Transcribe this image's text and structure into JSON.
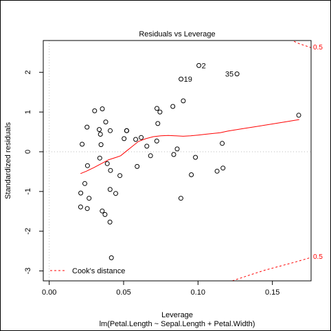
{
  "chart_data": {
    "type": "scatter",
    "title": "Residuals vs Leverage",
    "xlabel": "Leverage",
    "ylabel": "Standardized residuals",
    "subtitle": "lm(Petal.Length ~ Sepal.Length + Petal.Width)",
    "xlim": [
      -0.004,
      0.176
    ],
    "ylim": [
      -3.25,
      2.8
    ],
    "x_ticks": [
      "0.00",
      "0.05",
      "0.10",
      "0.15"
    ],
    "y_ticks": [
      "-3",
      "-2",
      "-1",
      "0",
      "1",
      "2"
    ],
    "x_tick_values": [
      0.0,
      0.05,
      0.1,
      0.15
    ],
    "y_tick_values": [
      -3,
      -2,
      -1,
      0,
      1,
      2
    ],
    "points": [
      {
        "x": 0.1006,
        "y": 2.17,
        "label": "2"
      },
      {
        "x": 0.0886,
        "y": 1.83,
        "label": "19"
      },
      {
        "x": 0.1262,
        "y": 1.96,
        "label": "35"
      },
      {
        "x": 0.1677,
        "y": 0.92
      },
      {
        "x": 0.0901,
        "y": 1.28
      },
      {
        "x": 0.0831,
        "y": 1.14
      },
      {
        "x": 0.0724,
        "y": 1.09
      },
      {
        "x": 0.0744,
        "y": 1.0
      },
      {
        "x": 0.073,
        "y": 0.71
      },
      {
        "x": 0.0305,
        "y": 1.03
      },
      {
        "x": 0.0357,
        "y": 1.08
      },
      {
        "x": 0.038,
        "y": 0.75
      },
      {
        "x": 0.0254,
        "y": 0.62
      },
      {
        "x": 0.0336,
        "y": 0.56
      },
      {
        "x": 0.041,
        "y": 0.53
      },
      {
        "x": 0.0344,
        "y": 0.44
      },
      {
        "x": 0.052,
        "y": 0.53
      },
      {
        "x": 0.0521,
        "y": 0.53
      },
      {
        "x": 0.0503,
        "y": 0.33
      },
      {
        "x": 0.0581,
        "y": 0.31
      },
      {
        "x": 0.0618,
        "y": 0.36
      },
      {
        "x": 0.0656,
        "y": 0.14
      },
      {
        "x": 0.0723,
        "y": 0.27
      },
      {
        "x": 0.086,
        "y": 0.07
      },
      {
        "x": 0.1163,
        "y": 0.21
      },
      {
        "x": 0.0221,
        "y": 0.19
      },
      {
        "x": 0.0348,
        "y": 0.18
      },
      {
        "x": 0.0837,
        "y": -0.07
      },
      {
        "x": 0.0681,
        "y": -0.1
      },
      {
        "x": 0.0983,
        "y": -0.14
      },
      {
        "x": 0.034,
        "y": -0.16
      },
      {
        "x": 0.0257,
        "y": -0.35
      },
      {
        "x": 0.039,
        "y": -0.3
      },
      {
        "x": 0.0591,
        "y": -0.37
      },
      {
        "x": 0.0412,
        "y": -0.47
      },
      {
        "x": 0.1168,
        "y": -0.41
      },
      {
        "x": 0.1128,
        "y": -0.49
      },
      {
        "x": 0.0475,
        "y": -0.6
      },
      {
        "x": 0.0955,
        "y": -0.58
      },
      {
        "x": 0.0239,
        "y": -0.8
      },
      {
        "x": 0.0409,
        "y": -0.95
      },
      {
        "x": 0.0447,
        "y": -1.05
      },
      {
        "x": 0.0212,
        "y": -1.04
      },
      {
        "x": 0.0268,
        "y": -1.17
      },
      {
        "x": 0.0885,
        "y": -1.17
      },
      {
        "x": 0.0211,
        "y": -1.39
      },
      {
        "x": 0.0256,
        "y": -1.43
      },
      {
        "x": 0.0356,
        "y": -1.49
      },
      {
        "x": 0.0375,
        "y": -1.58
      },
      {
        "x": 0.0408,
        "y": -1.77
      },
      {
        "x": 0.0418,
        "y": -2.67
      }
    ],
    "smooth_line": {
      "color": "#ff0000",
      "x": [
        0.021,
        0.025,
        0.03,
        0.035,
        0.04,
        0.045,
        0.048,
        0.052,
        0.056,
        0.06,
        0.065,
        0.07,
        0.075,
        0.08,
        0.085,
        0.09,
        0.095,
        0.1,
        0.105,
        0.11,
        0.115,
        0.12,
        0.13,
        0.14,
        0.15,
        0.16,
        0.168
      ],
      "y": [
        -0.55,
        -0.49,
        -0.4,
        -0.3,
        -0.2,
        -0.14,
        -0.1,
        0.02,
        0.14,
        0.26,
        0.33,
        0.38,
        0.4,
        0.41,
        0.4,
        0.39,
        0.4,
        0.42,
        0.44,
        0.46,
        0.48,
        0.52,
        0.58,
        0.64,
        0.7,
        0.76,
        0.81
      ]
    },
    "cooks_distance": {
      "legend": "Cook's distance",
      "level_label": "0.5",
      "color": "#ff0000",
      "upper_x": [
        0.162,
        0.168,
        0.176
      ],
      "upper_y": [
        2.82,
        2.72,
        2.62
      ],
      "lower_x": [
        0.123,
        0.135,
        0.145,
        0.155,
        0.165,
        0.176
      ],
      "lower_y": [
        -3.25,
        -3.1,
        -2.98,
        -2.88,
        -2.78,
        -2.66
      ]
    },
    "reference_lines": {
      "h": 0,
      "v": 0,
      "style": "dotted",
      "color": "#bbbbbb"
    }
  }
}
